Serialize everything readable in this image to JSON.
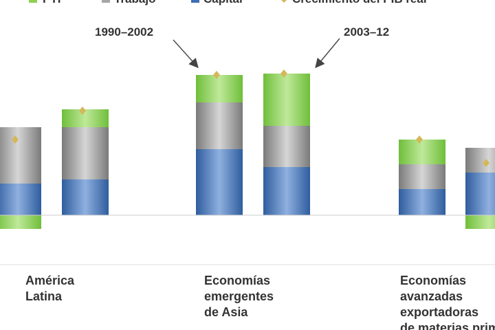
{
  "legend": {
    "items": [
      {
        "label": "PTF",
        "color": "#8fd14f"
      },
      {
        "label": "Trabajo",
        "color": "#a6a6a6"
      },
      {
        "label": "Capital",
        "color": "#3f6fb5"
      },
      {
        "label": "Crecimiento del PIB real",
        "color": "#d4b85a"
      }
    ]
  },
  "annotations": {
    "period_1": "1990–2002",
    "period_2": "2003–12"
  },
  "chart_data": {
    "type": "bar",
    "stacked": true,
    "title": "",
    "xlabel": "",
    "ylabel": "",
    "grid": false,
    "categories": [
      [
        "América",
        "Latina"
      ],
      [
        "Economías",
        "emergentes",
        "de Asia"
      ],
      [
        "Economías",
        "avanzadas",
        "exportadoras",
        "de materias primas"
      ]
    ],
    "periods": [
      "1990–2002",
      "2003–12"
    ],
    "colors": {
      "ptf": "#8fd14f",
      "trabajo": "#8a8a8a",
      "capital": "#3f6fb5",
      "pib": "#d4b85a"
    },
    "ylim": [
      -1.0,
      10.5
    ],
    "bars": [
      {
        "group": 0,
        "period": "1990–2002",
        "capital": 2.3,
        "trabajo": 4.1,
        "ptf": -1.0,
        "pib": 5.5
      },
      {
        "group": 0,
        "period": "2003–12",
        "capital": 2.6,
        "trabajo": 3.8,
        "ptf": 1.3,
        "pib": 7.6
      },
      {
        "group": 1,
        "period": "1990–2002",
        "capital": 4.8,
        "trabajo": 3.4,
        "ptf": 2.0,
        "pib": 10.2
      },
      {
        "group": 1,
        "period": "2003–12",
        "capital": 3.5,
        "trabajo": 3.0,
        "ptf": 3.8,
        "pib": 10.3
      },
      {
        "group": 2,
        "period": "1990–2002",
        "capital": 1.9,
        "trabajo": 1.8,
        "ptf": 1.8,
        "pib": 5.5
      },
      {
        "group": 2,
        "period": "2003–12",
        "capital": 3.1,
        "trabajo": 1.8,
        "ptf": -1.0,
        "pib": 3.8
      }
    ]
  }
}
